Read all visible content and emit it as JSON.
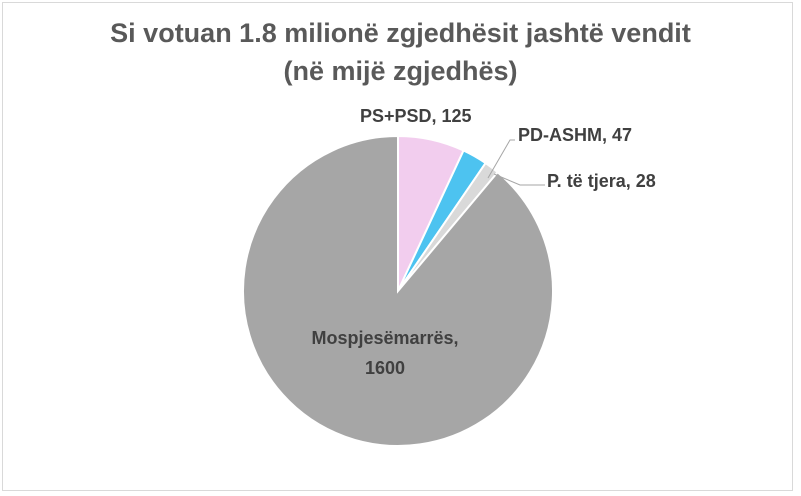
{
  "chart_data": {
    "type": "pie",
    "title": "Si votuan 1.8 milionë zgjedhësit jashtë vendit",
    "subtitle": "(në mijë zgjedhës)",
    "categories": [
      "PS+PSD",
      "PD-ASHM",
      "P. të tjera",
      "Mospjesëmarrës"
    ],
    "values": [
      125,
      47,
      28,
      1600
    ],
    "value_labels": [
      "PS+PSD, 125",
      "PD-ASHM, 47",
      "P. të tjera, 28",
      "Mospjesëmarrës, 1600"
    ],
    "colors": [
      "#f2cdee",
      "#4dc3f0",
      "#d9d9d9",
      "#a6a6a6"
    ]
  }
}
